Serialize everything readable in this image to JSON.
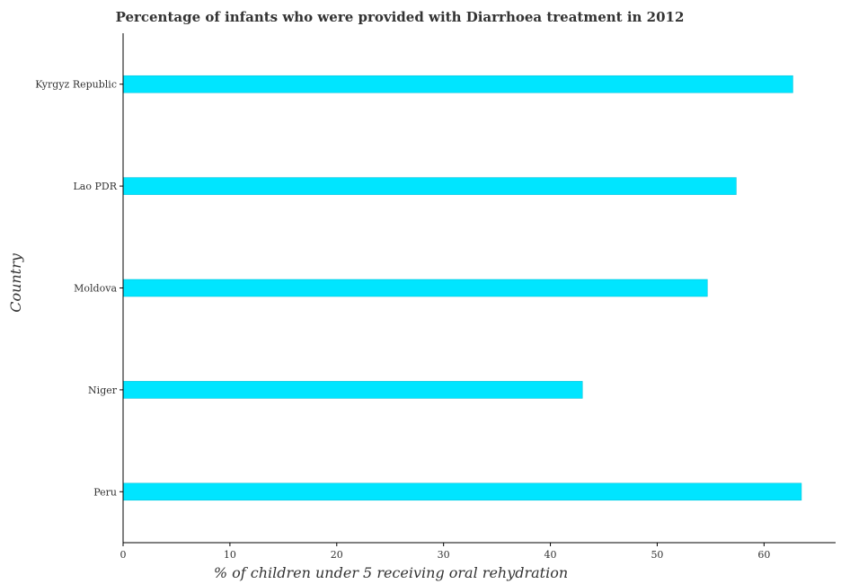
{
  "chart_data": {
    "type": "bar",
    "orientation": "horizontal",
    "title": "Percentage of infants who were provided with Diarrhoea treatment in 2012",
    "xlabel": "% of children under 5 receiving oral rehydration",
    "ylabel": "Country",
    "categories": [
      "Kyrgyz Republic",
      "Lao PDR",
      "Moldova",
      "Niger",
      "Peru"
    ],
    "values": [
      62.7,
      57.4,
      54.7,
      43.0,
      63.5
    ],
    "xlim": [
      0,
      66.7
    ],
    "xticks": [
      0,
      10,
      20,
      30,
      40,
      50,
      60
    ],
    "grid": false,
    "bar_color": "#00e5ff"
  }
}
